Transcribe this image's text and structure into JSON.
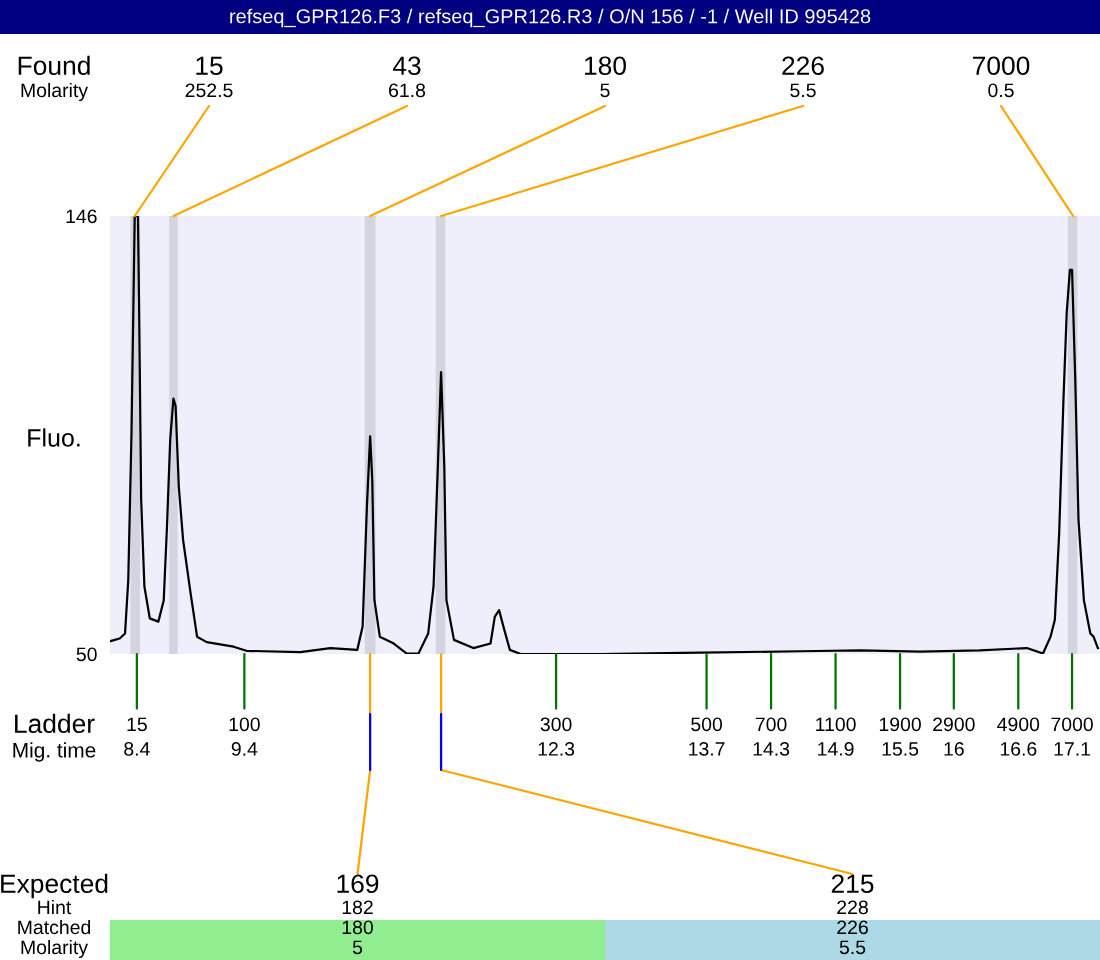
{
  "chart_data": {
    "type": "line",
    "title": "refseq_GPR126.F3 / refseq_GPR126.R3 / O/N 156 / -1 / Well ID 995428",
    "xlabel": "Mig. time",
    "ylabel": "Fluo.",
    "x": [
      8.15,
      8.24,
      8.29,
      8.32,
      8.35,
      8.38,
      8.41,
      8.42,
      8.44,
      8.47,
      8.52,
      8.6,
      8.65,
      8.68,
      8.71,
      8.74,
      8.76,
      8.79,
      8.83,
      8.9,
      8.96,
      9.05,
      9.3,
      9.42,
      9.92,
      10.2,
      10.45,
      10.5,
      10.54,
      10.57,
      10.59,
      10.61,
      10.66,
      10.79,
      10.91,
      11.02,
      11.11,
      11.16,
      11.2,
      11.23,
      11.26,
      11.28,
      11.35,
      11.53,
      11.69,
      11.73,
      11.77,
      11.81,
      11.87,
      11.97,
      12.71,
      13.64,
      14.57,
      15.13,
      15.69,
      16.24,
      16.68,
      16.83,
      16.9,
      16.94,
      16.98,
      17.02,
      17.05,
      17.08,
      17.1,
      17.13,
      17.16,
      17.21,
      17.27,
      17.3,
      17.34
    ],
    "series": [
      {
        "color": "#000000",
        "values": [
          52.8,
          53.4,
          54.5,
          66.2,
          98.4,
          146,
          146,
          127.6,
          83.8,
          64.8,
          57.8,
          57.1,
          61.8,
          77.9,
          96.9,
          106,
          104.4,
          86.7,
          75,
          63.3,
          53.8,
          52.6,
          51.6,
          50.7,
          50.4,
          51.3,
          50.9,
          56,
          82.3,
          97.7,
          88.1,
          61.8,
          53.8,
          52.3,
          50.1,
          50.1,
          54.5,
          64.8,
          91.1,
          111.8,
          91.1,
          61.8,
          53.1,
          51.3,
          52.3,
          58.2,
          59.6,
          56,
          50.9,
          50,
          50,
          50.3,
          50.6,
          50.8,
          50.5,
          50.8,
          51.3,
          50.1,
          53.8,
          57.5,
          76.4,
          105.7,
          124.7,
          134.2,
          134.2,
          110,
          79.4,
          61.8,
          54.5,
          53.8,
          51.3
        ]
      }
    ],
    "xlim": [
      8.15,
      17.36
    ],
    "xticks": [
      8.4,
      9.4,
      12.3,
      13.7,
      14.3,
      14.9,
      15.5,
      16,
      16.6,
      17.1
    ],
    "ylim": [
      50,
      146
    ],
    "yticks": [
      50,
      146
    ],
    "bands": [
      {
        "axis": "x",
        "from": 8.34,
        "to": 8.43,
        "color": "#d4d4e0"
      },
      {
        "axis": "x",
        "from": 8.7,
        "to": 8.78,
        "color": "#d4d4e0"
      },
      {
        "axis": "x",
        "from": 10.52,
        "to": 10.62,
        "color": "#d4d4e0"
      },
      {
        "axis": "x",
        "from": 11.18,
        "to": 11.27,
        "color": "#d4d4e0"
      },
      {
        "axis": "x",
        "from": 17.06,
        "to": 17.15,
        "color": "#d4d4e0"
      }
    ],
    "annotations": [
      "Found\nMolarity",
      {
        "text": "15\n252.5",
        "x": 8.38,
        "y": 146
      },
      {
        "text": "43\n61.8",
        "x": 8.74,
        "y": 146
      },
      {
        "text": "180\n5",
        "x": 10.57,
        "y": 146
      },
      {
        "text": "226\n5.5",
        "x": 11.23,
        "y": 146
      },
      {
        "text": "7000\n0.5",
        "x": 17.11,
        "y": 146
      },
      "Ladder",
      {
        "text": "15",
        "x": 8.4,
        "y": 50
      },
      {
        "text": "100",
        "x": 9.4,
        "y": 50
      },
      {
        "text": "300",
        "x": 12.3,
        "y": 50
      },
      {
        "text": "500",
        "x": 13.7,
        "y": 50
      },
      {
        "text": "700",
        "x": 14.3,
        "y": 50
      },
      {
        "text": "1100",
        "x": 14.9,
        "y": 50
      },
      {
        "text": "1900",
        "x": 15.5,
        "y": 50
      },
      {
        "text": "2900",
        "x": 16,
        "y": 50
      },
      {
        "text": "4900",
        "x": 16.6,
        "y": 50
      },
      {
        "text": "7000",
        "x": 17.1,
        "y": 50
      },
      "Expected\nHint\nMatched\nMolarity",
      {
        "text": "169\n182\n180\n5",
        "x": 10.57,
        "y": 50
      },
      {
        "text": "215\n228\n226\n5.5",
        "x": 11.23,
        "y": 50
      }
    ]
  }
}
